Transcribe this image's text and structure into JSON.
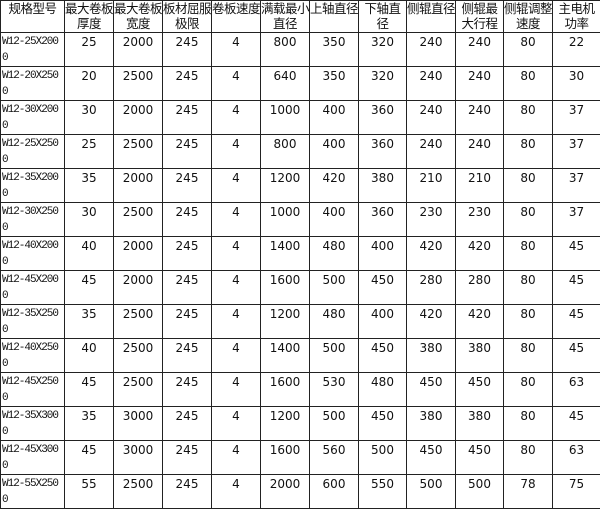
{
  "table": {
    "headers": [
      "规格型号",
      "最大卷板厚度",
      "最大卷板宽度",
      "板材屈服极限",
      "卷板速度",
      "满载最小直径",
      "上轴直径",
      "下轴直径",
      "侧辊直径",
      "侧辊最大行程",
      "侧辊调整速度",
      "主电机功率"
    ],
    "rows": [
      [
        "W12-25X2000",
        "25",
        "2000",
        "245",
        "4",
        "800",
        "350",
        "320",
        "240",
        "240",
        "80",
        "22"
      ],
      [
        "W12-20X2500",
        "20",
        "2500",
        "245",
        "4",
        "640",
        "350",
        "320",
        "240",
        "240",
        "80",
        "30"
      ],
      [
        "W12-30X2000",
        "30",
        "2000",
        "245",
        "4",
        "1000",
        "400",
        "360",
        "240",
        "240",
        "80",
        "37"
      ],
      [
        "W12-25X2500",
        "25",
        "2500",
        "245",
        "4",
        "800",
        "400",
        "360",
        "240",
        "240",
        "80",
        "37"
      ],
      [
        "W12-35X2000",
        "35",
        "2000",
        "245",
        "4",
        "1200",
        "420",
        "380",
        "210",
        "210",
        "80",
        "37"
      ],
      [
        "W12-30X2500",
        "30",
        "2500",
        "245",
        "4",
        "1000",
        "400",
        "360",
        "230",
        "230",
        "80",
        "37"
      ],
      [
        "W12-40X2000",
        "40",
        "2000",
        "245",
        "4",
        "1400",
        "480",
        "400",
        "420",
        "420",
        "80",
        "45"
      ],
      [
        "W12-45X2000",
        "45",
        "2000",
        "245",
        "4",
        "1600",
        "500",
        "450",
        "280",
        "280",
        "80",
        "45"
      ],
      [
        "W12-35X2500",
        "35",
        "2500",
        "245",
        "4",
        "1200",
        "480",
        "400",
        "420",
        "420",
        "80",
        "45"
      ],
      [
        "W12-40X2500",
        "40",
        "2500",
        "245",
        "4",
        "1400",
        "500",
        "450",
        "380",
        "380",
        "80",
        "45"
      ],
      [
        "W12-45X2500",
        "45",
        "2500",
        "245",
        "4",
        "1600",
        "530",
        "480",
        "450",
        "450",
        "80",
        "63"
      ],
      [
        "W12-35X3000",
        "35",
        "3000",
        "245",
        "4",
        "1200",
        "500",
        "450",
        "380",
        "380",
        "80",
        "45"
      ],
      [
        "W12-45X3000",
        "45",
        "3000",
        "245",
        "4",
        "1600",
        "560",
        "500",
        "450",
        "450",
        "80",
        "63"
      ],
      [
        "W12-55X2500",
        "55",
        "2500",
        "245",
        "4",
        "2000",
        "600",
        "550",
        "500",
        "500",
        "78",
        "75"
      ]
    ]
  }
}
